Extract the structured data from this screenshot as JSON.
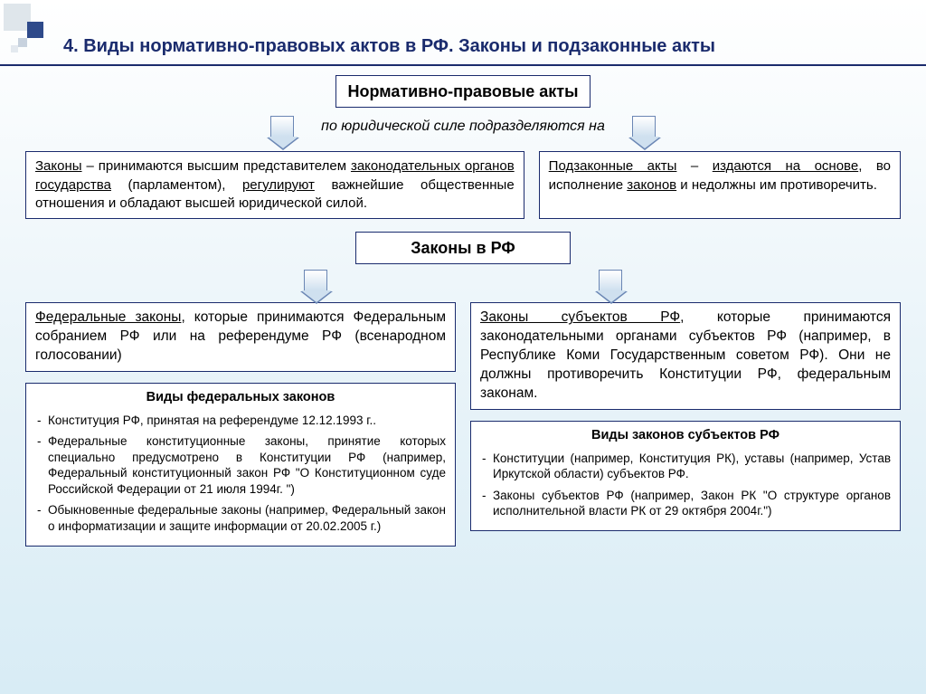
{
  "colors": {
    "title": "#1a2b6d",
    "border": "#1a2b6d",
    "bg_grad_top": "#ffffff",
    "bg_grad_bottom": "#d8ecf5",
    "arrow_fill": "#cfe0ef",
    "arrow_border": "#6a86b4"
  },
  "title": "4. Виды нормативно-правовых актов в РФ. Законы и подзаконные акты",
  "header1": "Нормативно-правовые акты",
  "subtitle1": "по юридической силе подразделяются на",
  "laws_def_html": "<u>Законы</u> – принимаются высшим представителем <u>законодательных органов государства</u> (парламентом), <u>регулируют</u> важнейшие общественные отношения и обладают высшей юридической силой.",
  "bylaws_def_html": "<u>Подзаконные акты</u> – <u>издаются на основе</u>, во исполнение <u>законов</u> и недолжны им противоречить.",
  "header2": "Законы в РФ",
  "federal_html": "<u>Федеральные законы</u>, которые принимаются Федеральным собранием РФ или на референдуме РФ (всенародном голосовании)",
  "subjects_html": "<u>Законы субъектов РФ</u>, которые принимаются законодательными органами субъектов РФ (например, в Республике Коми Государственным советом РФ). Они не должны противоречить Конституции РФ, федеральным законам.",
  "fed_types_title": "Виды федеральных законов",
  "fed_types": [
    "Конституция РФ, принятая на референдуме  12.12.1993 г..",
    "Федеральные конституционные законы, принятие которых специально предусмотрено в Конституции РФ (например, Федеральный конституционный закон РФ \"О Конституционном суде Российской Федерации от 21 июля 1994г. \")",
    "Обыкновенные федеральные законы (например, Федеральный закон о информатизации и защите информации от 20.02.2005 г.)"
  ],
  "subj_types_title": "Виды законов субъектов РФ",
  "subj_types": [
    "Конституции (например, Конституция РК), уставы (например, Устав Иркутской области) субъектов РФ.",
    "Законы субъектов РФ (например, Закон РК \"О структуре органов исполнительной власти РК от 29 октября 2004г.\")"
  ]
}
